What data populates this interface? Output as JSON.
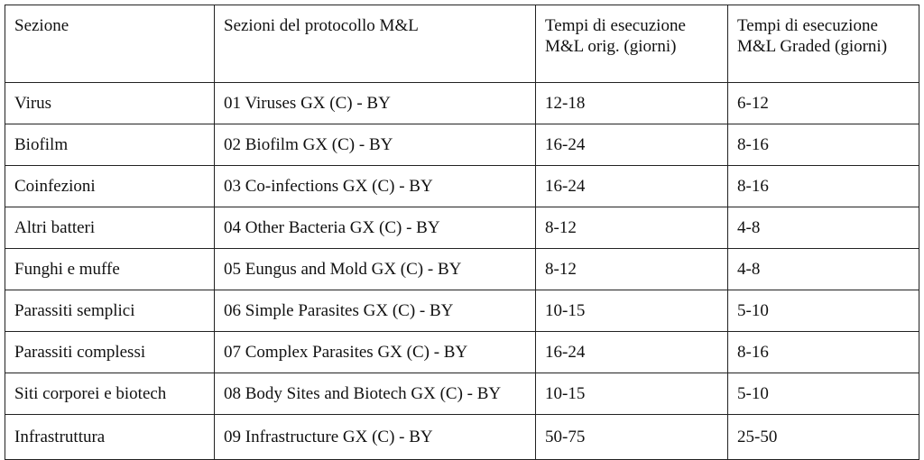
{
  "table": {
    "header": [
      "Sezione",
      "Sezioni del protocollo M&L",
      "Tempi di esecuzione M&L orig. (giorni)",
      "Tempi di esecuzione M&L Graded (giorni)"
    ],
    "rows": [
      [
        "Virus",
        "01 Viruses GX (C) - BY",
        "12-18",
        "6-12"
      ],
      [
        "Biofilm",
        "02 Biofilm GX (C) - BY",
        "16-24",
        "8-16"
      ],
      [
        "Coinfezioni",
        "03 Co-infections GX (C) - BY",
        "16-24",
        "8-16"
      ],
      [
        "Altri batteri",
        "04 Other Bacteria GX (C) - BY",
        "8-12",
        "4-8"
      ],
      [
        "Funghi e muffe",
        "05 Eungus and Mold GX (C) - BY",
        "8-12",
        "4-8"
      ],
      [
        "Parassiti semplici",
        "06 Simple Parasites GX (C) - BY",
        "10-15",
        "5-10"
      ],
      [
        "Parassiti complessi",
        "07 Complex Parasites GX (C) - BY",
        "16-24",
        "8-16"
      ],
      [
        "Siti corporei e biotech",
        "08 Body Sites and Biotech GX (C) - BY",
        "10-15",
        "5-10"
      ],
      [
        "Infrastruttura",
        "09 Infrastructure GX (C) - BY",
        "50-75",
        "25-50"
      ]
    ]
  }
}
